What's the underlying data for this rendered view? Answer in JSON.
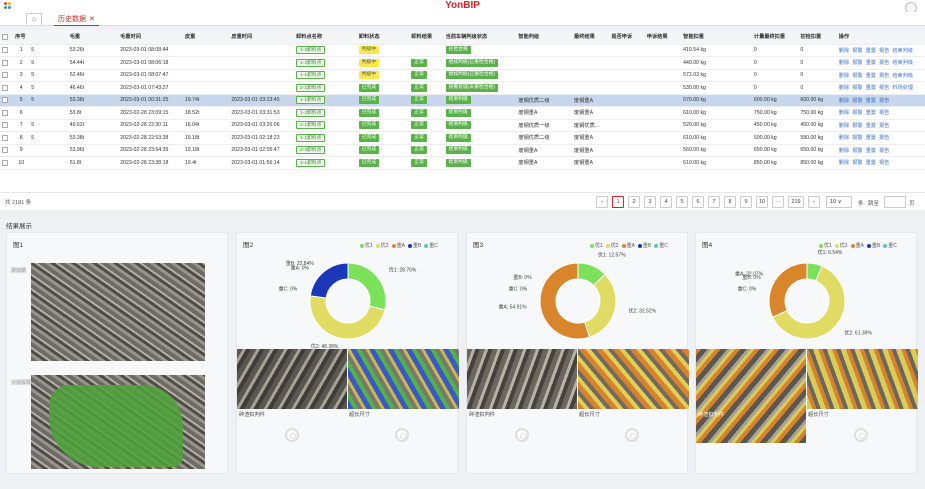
{
  "header": {
    "brand": "YonBIP"
  },
  "tabs": {
    "active": "历史数据",
    "close": "✕"
  },
  "colors": {
    "green": "#5ab24a",
    "yellow": "#f7e94a",
    "blue": "#3d72c8",
    "red": "#d6262a"
  },
  "table": {
    "headers": [
      "",
      "序号",
      "",
      "毛重",
      "毛重时间",
      "皮重",
      "皮重时间",
      "卸料点名称",
      "卸料状态",
      "卸料结果",
      "当前车辆判级状态",
      "智能判级",
      "最终结果",
      "是否申诉",
      "申诉结果",
      "智能扣重",
      "计量最终扣重",
      "初检扣重",
      "操作"
    ],
    "rows": [
      {
        "no": "1",
        "m": "5",
        "gross": "53.26t",
        "gtime": "2023-03-01 08:08:44",
        "tare": "",
        "ttime": "",
        "point": "1-3卸料点",
        "status": "判级中",
        "st": "ye",
        "result": "",
        "state": "初检合格",
        "grade": "",
        "final": "",
        "appeal": "",
        "ares": "",
        "ai": "410.54 kg",
        "fin": "0",
        "init": "0",
        "ops": [
          "删除",
          "报警",
          "重置",
          "报告",
          "结束判级"
        ]
      },
      {
        "no": "2",
        "m": "5",
        "gross": "54.44t",
        "gtime": "2023-03-01 08:06:18",
        "tare": "",
        "ttime": "",
        "point": "2-3卸料点",
        "status": "判级中",
        "st": "ye",
        "result": "正常",
        "state": "继续判级(已重检合格)",
        "grade": "",
        "final": "",
        "appeal": "",
        "ares": "",
        "ai": "440.00 kg",
        "fin": "0",
        "init": "0",
        "ops": [
          "删除",
          "报警",
          "重置",
          "报告",
          "结束判级"
        ]
      },
      {
        "no": "3",
        "m": "5",
        "gross": "52.46t",
        "gtime": "2023-03-01 08:07:47",
        "tare": "",
        "ttime": "",
        "point": "1-1卸料点",
        "status": "判级中",
        "st": "ye",
        "result": "正常",
        "state": "继续判级(已重检合格)",
        "grade": "",
        "final": "",
        "appeal": "",
        "ares": "",
        "ai": "572.03 kg",
        "fin": "0",
        "init": "0",
        "ops": [
          "删除",
          "报警",
          "重置",
          "报告",
          "结束判级"
        ]
      },
      {
        "no": "4",
        "m": "5",
        "gross": "46.46t",
        "gtime": "2023-03-01 07:43:27",
        "tare": "",
        "ttime": "",
        "point": "2-1卸料点",
        "status": "已完成",
        "st": "gr",
        "result": "正常",
        "state": "报警处理(未重检合格)",
        "grade": "",
        "final": "",
        "appeal": "",
        "ares": "",
        "ai": "530.00 kg",
        "fin": "0",
        "init": "0",
        "ops": [
          "删除",
          "报警",
          "重置",
          "报告",
          "料场处理"
        ]
      },
      {
        "no": "5",
        "m": "5",
        "gross": "53.38t",
        "gtime": "2023-03-01 00:31:25",
        "tare": "19.74t",
        "ttime": "2023-03-01 03:23:45",
        "point": "1-1卸料点",
        "status": "已完成",
        "st": "gr",
        "result": "正常",
        "state": "结束判级",
        "grade": "废钢优质二级",
        "final": "废钢重A",
        "appeal": "",
        "ares": "",
        "ai": "570.00 kg",
        "fin": "600.00 kg",
        "init": "600.00 kg",
        "ops": [
          "删除",
          "报警",
          "重置",
          "报告"
        ],
        "sel": true
      },
      {
        "no": "6",
        "m": "",
        "gross": "53.8t",
        "gtime": "2023-02-28 23:09:15",
        "tare": "18.52t",
        "ttime": "2023-03-01 03:31:53",
        "point": "1-2卸料点",
        "status": "已完成",
        "st": "gr",
        "result": "正常",
        "state": "结束判级",
        "grade": "废钢重A",
        "final": "废钢重A",
        "appeal": "",
        "ares": "",
        "ai": "610.00 kg",
        "fin": "750.00 kg",
        "init": "750.00 kg",
        "ops": [
          "删除",
          "报警",
          "重置",
          "报告"
        ]
      },
      {
        "no": "7",
        "m": "5",
        "gross": "49.62t",
        "gtime": "2023-02-28 22:30:11",
        "tare": "16.04t",
        "ttime": "2023-03-01 03:26:06",
        "point": "2-1卸料点",
        "status": "已完成",
        "st": "gr",
        "result": "正常",
        "state": "结束判级",
        "grade": "废钢优质一级",
        "final": "废钢优质…",
        "appeal": "",
        "ares": "",
        "ai": "520.00 kg",
        "fin": "450.00 kg",
        "init": "450.00 kg",
        "ops": [
          "删除",
          "报警",
          "重置",
          "报告"
        ]
      },
      {
        "no": "8",
        "m": "5",
        "gross": "53.38t",
        "gtime": "2023-02-28 22:53:38",
        "tare": "19.18t",
        "ttime": "2023-03-01 02:18:23",
        "point": "1-1卸料点",
        "status": "已完成",
        "st": "gr",
        "result": "正常",
        "state": "结束判级",
        "grade": "废钢优质二级",
        "final": "废钢重A",
        "appeal": "",
        "ares": "",
        "ai": "610.00 kg",
        "fin": "500.00 kg",
        "init": "580.00 kg",
        "ops": [
          "删除",
          "报警",
          "重置",
          "报告"
        ]
      },
      {
        "no": "9",
        "m": "",
        "gross": "53.96t",
        "gtime": "2023-02-28 23:54:39",
        "tare": "19.18t",
        "ttime": "2023-03-01 02:05:47",
        "point": "2-3卸料点",
        "status": "已完成",
        "st": "gr",
        "result": "正常",
        "state": "结束判级",
        "grade": "废钢重A",
        "final": "废钢重A",
        "appeal": "",
        "ares": "",
        "ai": "560.00 kg",
        "fin": "650.00 kg",
        "init": "650.00 kg",
        "ops": [
          "删除",
          "报警",
          "重置",
          "报告"
        ]
      },
      {
        "no": "10",
        "m": "",
        "gross": "51.8t",
        "gtime": "2023-02-28 23:38:18",
        "tare": "19.4t",
        "ttime": "2023-03-01 01:56:14",
        "point": "2-1卸料点",
        "status": "已完成",
        "st": "gr",
        "result": "正常",
        "state": "结束判级",
        "grade": "废钢重A",
        "final": "废钢重A",
        "appeal": "",
        "ares": "",
        "ai": "610.00 kg",
        "fin": "850.00 kg",
        "init": "850.00 kg",
        "ops": [
          "删除",
          "报警",
          "重置",
          "报告"
        ]
      }
    ]
  },
  "footer": {
    "total": "共 2181 条",
    "pages": [
      "1",
      "2",
      "3",
      "4",
      "5",
      "6",
      "7",
      "8",
      "9",
      "10",
      "···",
      "219"
    ],
    "prev": "‹",
    "next": "›",
    "size": "10 ∨",
    "per": "条",
    "jump": "跳至",
    "page": "页"
  },
  "results": {
    "title": "结果展示",
    "fig1": {
      "title": "图1",
      "labels": [
        "原始图",
        "分割结果"
      ]
    },
    "fig2": {
      "title": "图2",
      "captions": [
        "碎渣扣判件",
        "超长尺寸"
      ]
    },
    "fig3": {
      "title": "图3",
      "captions": [
        "碎渣扣判件",
        "超长尺寸"
      ]
    },
    "fig4": {
      "title": "图4",
      "captions": [
        "碎渣扣判件",
        "超长尺寸"
      ]
    },
    "legend": [
      "优1",
      "优2",
      "重A",
      "重B",
      "重C"
    ],
    "legend_colors": [
      "#7be05a",
      "#e0db62",
      "#d9852c",
      "#1c37b8",
      "#55c9c1"
    ]
  },
  "chart_data": [
    {
      "type": "pie",
      "title": "图2",
      "labels": [
        "优1",
        "优2",
        "重A",
        "重B",
        "重C"
      ],
      "values": [
        28.76,
        48.38,
        0,
        22.84,
        0
      ],
      "colors": [
        "#7be05a",
        "#e0db62",
        "#d9852c",
        "#1c37b8",
        "#55c9c1"
      ],
      "annotations": [
        "优1: 28.76%",
        "优2: 48.38%",
        "重A: 0%",
        "重B: 22.84%",
        "重C: 0%"
      ]
    },
    {
      "type": "pie",
      "title": "图3",
      "labels": [
        "优1",
        "优2",
        "重A",
        "重B",
        "重C"
      ],
      "values": [
        12.57,
        32.52,
        54.91,
        0,
        0
      ],
      "colors": [
        "#7be05a",
        "#e0db62",
        "#d9852c",
        "#1c37b8",
        "#55c9c1"
      ],
      "annotations": [
        "优1: 12.57%",
        "优2: 32.52%",
        "重A: 54.91%",
        "重B: 0%",
        "重C: 0%"
      ]
    },
    {
      "type": "pie",
      "title": "图4",
      "labels": [
        "优1",
        "优2",
        "重A",
        "重B",
        "重C"
      ],
      "values": [
        6.54,
        61.39,
        32.07,
        0,
        0
      ],
      "colors": [
        "#7be05a",
        "#e0db62",
        "#d9852c",
        "#1c37b8",
        "#55c9c1"
      ],
      "annotations": [
        "优1: 6.54%",
        "优2: 61.39%",
        "重A: 32.07%",
        "重B: 0%",
        "重C: 0%"
      ]
    }
  ]
}
